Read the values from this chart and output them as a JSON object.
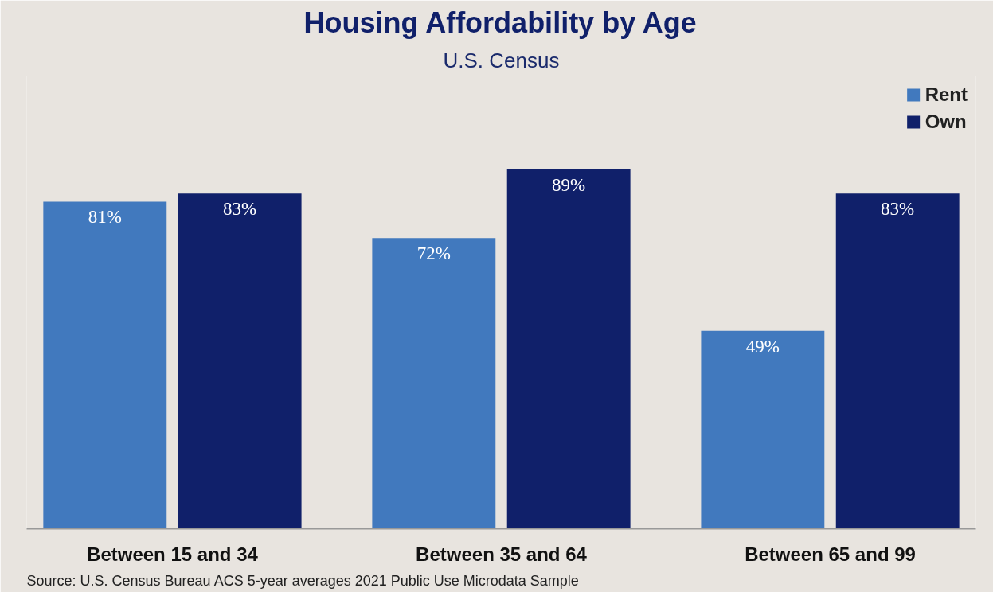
{
  "chart_data": {
    "type": "bar",
    "title": "Housing Affordability by Age",
    "subtitle": "U.S. Census",
    "categories": [
      "Between 15 and 34",
      "Between 35 and 64",
      "Between 65 and 99"
    ],
    "series": [
      {
        "name": "Rent",
        "color": "#4179be",
        "values": [
          81,
          72,
          49
        ],
        "value_labels": [
          "81%",
          "72%",
          "49%"
        ]
      },
      {
        "name": "Own",
        "color": "#10206a",
        "values": [
          83,
          89,
          83
        ],
        "value_labels": [
          "83%",
          "89%",
          "83%"
        ]
      }
    ],
    "legend": "top right",
    "grid": false,
    "annotations": [
      "Source: U.S. Census Bureau ACS 5-year averages 2021 Public Use Microdata Sample"
    ]
  }
}
